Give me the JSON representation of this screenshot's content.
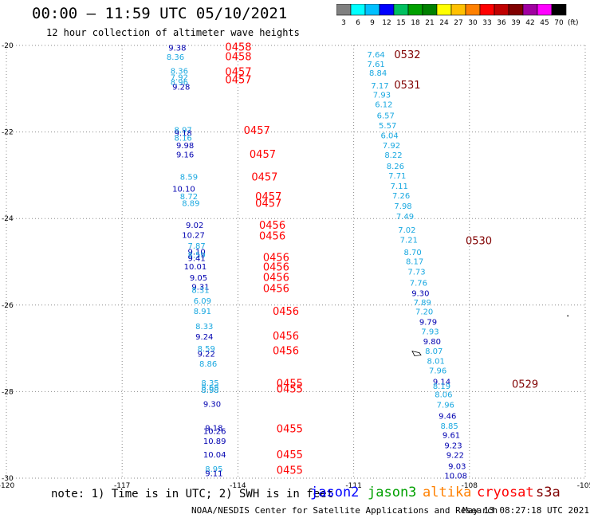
{
  "header": {
    "title": "00:00 – 11:59 UTC 05/10/2021",
    "subtitle": "12 hour collection of altimeter wave heights"
  },
  "colorbar": {
    "unit": "(ft)",
    "segments": [
      {
        "label": "3",
        "color": "#808080"
      },
      {
        "label": "6",
        "color": "#00ffff"
      },
      {
        "label": "9",
        "color": "#00c0ff"
      },
      {
        "label": "12",
        "color": "#0000ff"
      },
      {
        "label": "15",
        "color": "#00c060"
      },
      {
        "label": "18",
        "color": "#00a000"
      },
      {
        "label": "21",
        "color": "#008000"
      },
      {
        "label": "24",
        "color": "#ffff00"
      },
      {
        "label": "27",
        "color": "#ffc000"
      },
      {
        "label": "30",
        "color": "#ff8000"
      },
      {
        "label": "33",
        "color": "#ff0000"
      },
      {
        "label": "36",
        "color": "#c00000"
      },
      {
        "label": "39",
        "color": "#800000"
      },
      {
        "label": "42",
        "color": "#a000a0"
      },
      {
        "label": "45",
        "color": "#ff00ff"
      },
      {
        "label": "70",
        "color": "#000000"
      }
    ]
  },
  "chart_data": {
    "type": "scatter",
    "xlim": [
      -120,
      -105
    ],
    "ylim": [
      -30,
      -20
    ],
    "x_ticks": [
      "-120",
      "-117",
      "-114",
      "-111",
      "-108",
      "-105"
    ],
    "y_ticks": [
      "-20",
      "-22",
      "-24",
      "-26",
      "-28",
      "-30"
    ],
    "grid": true,
    "colors": {
      "light": "#19a8e0",
      "dark": "#0000b0",
      "red": "#ff0000",
      "darkred": "#800000"
    },
    "track_labels": [
      {
        "text": "0458",
        "lon": -114.33,
        "lat": -20.03,
        "color": "red"
      },
      {
        "text": "0458",
        "lon": -114.33,
        "lat": -20.25,
        "color": "red"
      },
      {
        "text": "0457",
        "lon": -114.33,
        "lat": -20.6,
        "color": "red"
      },
      {
        "text": "0457",
        "lon": -114.33,
        "lat": -20.78,
        "color": "red"
      },
      {
        "text": "0457",
        "lon": -113.85,
        "lat": -21.95,
        "color": "red"
      },
      {
        "text": "0457",
        "lon": -113.7,
        "lat": -22.5,
        "color": "red"
      },
      {
        "text": "0457",
        "lon": -113.65,
        "lat": -23.03,
        "color": "red"
      },
      {
        "text": "0457",
        "lon": -113.55,
        "lat": -23.48,
        "color": "red"
      },
      {
        "text": "0457",
        "lon": -113.55,
        "lat": -23.64,
        "color": "red"
      },
      {
        "text": "0456",
        "lon": -113.45,
        "lat": -24.14,
        "color": "red"
      },
      {
        "text": "0456",
        "lon": -113.45,
        "lat": -24.39,
        "color": "red"
      },
      {
        "text": "0456",
        "lon": -113.35,
        "lat": -24.89,
        "color": "red"
      },
      {
        "text": "0456",
        "lon": -113.35,
        "lat": -25.11,
        "color": "red"
      },
      {
        "text": "0456",
        "lon": -113.35,
        "lat": -25.35,
        "color": "red"
      },
      {
        "text": "0456",
        "lon": -113.35,
        "lat": -25.61,
        "color": "red"
      },
      {
        "text": "0456",
        "lon": -113.1,
        "lat": -26.13,
        "color": "red"
      },
      {
        "text": "0456",
        "lon": -113.1,
        "lat": -26.7,
        "color": "red"
      },
      {
        "text": "0456",
        "lon": -113.1,
        "lat": -27.04,
        "color": "red"
      },
      {
        "text": "0455",
        "lon": -113.0,
        "lat": -27.8,
        "color": "red"
      },
      {
        "text": "0455",
        "lon": -113.0,
        "lat": -27.93,
        "color": "red"
      },
      {
        "text": "0455",
        "lon": -113.0,
        "lat": -28.85,
        "color": "red"
      },
      {
        "text": "0455",
        "lon": -113.0,
        "lat": -29.45,
        "color": "red"
      },
      {
        "text": "0455",
        "lon": -113.0,
        "lat": -29.81,
        "color": "red"
      },
      {
        "text": "0532",
        "lon": -109.95,
        "lat": -20.2,
        "color": "darkred"
      },
      {
        "text": "0531",
        "lon": -109.95,
        "lat": -20.9,
        "color": "darkred"
      },
      {
        "text": "0530",
        "lon": -108.1,
        "lat": -24.5,
        "color": "darkred"
      },
      {
        "text": "0529",
        "lon": -106.9,
        "lat": -27.82,
        "color": "darkred"
      }
    ],
    "swh_points": [
      {
        "text": "9.38",
        "lon": -115.8,
        "lat": -20.05,
        "color": "dark"
      },
      {
        "text": "8.36",
        "lon": -115.85,
        "lat": -20.26,
        "color": "light"
      },
      {
        "text": "8.36",
        "lon": -115.75,
        "lat": -20.58,
        "color": "light"
      },
      {
        "text": "7.92",
        "lon": -115.75,
        "lat": -20.73,
        "color": "light"
      },
      {
        "text": "8.96",
        "lon": -115.75,
        "lat": -20.84,
        "color": "light"
      },
      {
        "text": "9.28",
        "lon": -115.7,
        "lat": -20.95,
        "color": "dark"
      },
      {
        "text": "8.97",
        "lon": -115.65,
        "lat": -21.94,
        "color": "light"
      },
      {
        "text": "9.18",
        "lon": -115.65,
        "lat": -22.02,
        "color": "dark"
      },
      {
        "text": "8.16",
        "lon": -115.65,
        "lat": -22.13,
        "color": "light"
      },
      {
        "text": "9.98",
        "lon": -115.6,
        "lat": -22.3,
        "color": "dark"
      },
      {
        "text": "9.16",
        "lon": -115.6,
        "lat": -22.51,
        "color": "dark"
      },
      {
        "text": "8.59",
        "lon": -115.5,
        "lat": -23.03,
        "color": "light"
      },
      {
        "text": "10.10",
        "lon": -115.7,
        "lat": -23.31,
        "color": "dark"
      },
      {
        "text": "8.72",
        "lon": -115.5,
        "lat": -23.48,
        "color": "light"
      },
      {
        "text": "8.89",
        "lon": -115.45,
        "lat": -23.64,
        "color": "light"
      },
      {
        "text": "9.02",
        "lon": -115.35,
        "lat": -24.14,
        "color": "dark"
      },
      {
        "text": "10.27",
        "lon": -115.45,
        "lat": -24.37,
        "color": "dark"
      },
      {
        "text": "7.87",
        "lon": -115.3,
        "lat": -24.62,
        "color": "light"
      },
      {
        "text": "9.10",
        "lon": -115.3,
        "lat": -24.76,
        "color": "dark"
      },
      {
        "text": "8.59",
        "lon": -115.3,
        "lat": -24.83,
        "color": "light"
      },
      {
        "text": "9.41",
        "lon": -115.3,
        "lat": -24.91,
        "color": "dark"
      },
      {
        "text": "10.01",
        "lon": -115.4,
        "lat": -25.1,
        "color": "dark"
      },
      {
        "text": "9.05",
        "lon": -115.25,
        "lat": -25.36,
        "color": "dark"
      },
      {
        "text": "9.31",
        "lon": -115.2,
        "lat": -25.57,
        "color": "dark"
      },
      {
        "text": "8.31",
        "lon": -115.2,
        "lat": -25.64,
        "color": "light"
      },
      {
        "text": "6.09",
        "lon": -115.15,
        "lat": -25.89,
        "color": "light"
      },
      {
        "text": "8.91",
        "lon": -115.15,
        "lat": -26.13,
        "color": "light"
      },
      {
        "text": "8.33",
        "lon": -115.1,
        "lat": -26.48,
        "color": "light"
      },
      {
        "text": "9.24",
        "lon": -115.1,
        "lat": -26.72,
        "color": "dark"
      },
      {
        "text": "8.59",
        "lon": -115.05,
        "lat": -27.0,
        "color": "light"
      },
      {
        "text": "9.22",
        "lon": -115.05,
        "lat": -27.12,
        "color": "dark"
      },
      {
        "text": "8.86",
        "lon": -115.0,
        "lat": -27.35,
        "color": "light"
      },
      {
        "text": "8.35",
        "lon": -114.95,
        "lat": -27.79,
        "color": "light"
      },
      {
        "text": "8.68",
        "lon": -114.95,
        "lat": -27.89,
        "color": "light"
      },
      {
        "text": "8.98",
        "lon": -114.95,
        "lat": -27.96,
        "color": "light"
      },
      {
        "text": "9.30",
        "lon": -114.9,
        "lat": -28.28,
        "color": "dark"
      },
      {
        "text": "9.18",
        "lon": -114.85,
        "lat": -28.83,
        "color": "dark"
      },
      {
        "text": "10.26",
        "lon": -114.9,
        "lat": -28.9,
        "color": "dark"
      },
      {
        "text": "10.89",
        "lon": -114.9,
        "lat": -29.13,
        "color": "dark"
      },
      {
        "text": "10.04",
        "lon": -114.9,
        "lat": -29.45,
        "color": "dark"
      },
      {
        "text": "8.95",
        "lon": -114.85,
        "lat": -29.78,
        "color": "light"
      },
      {
        "text": "9.11",
        "lon": -114.85,
        "lat": -29.88,
        "color": "dark"
      },
      {
        "text": "7.64",
        "lon": -110.65,
        "lat": -20.2,
        "color": "light"
      },
      {
        "text": "7.61",
        "lon": -110.65,
        "lat": -20.42,
        "color": "light"
      },
      {
        "text": "8.84",
        "lon": -110.6,
        "lat": -20.63,
        "color": "light"
      },
      {
        "text": "7.17",
        "lon": -110.55,
        "lat": -20.92,
        "color": "light"
      },
      {
        "text": "7.93",
        "lon": -110.5,
        "lat": -21.13,
        "color": "light"
      },
      {
        "text": "6.12",
        "lon": -110.45,
        "lat": -21.35,
        "color": "light"
      },
      {
        "text": "6.57",
        "lon": -110.4,
        "lat": -21.61,
        "color": "light"
      },
      {
        "text": "5.57",
        "lon": -110.35,
        "lat": -21.84,
        "color": "light"
      },
      {
        "text": "6.04",
        "lon": -110.3,
        "lat": -22.07,
        "color": "light"
      },
      {
        "text": "7.92",
        "lon": -110.25,
        "lat": -22.3,
        "color": "light"
      },
      {
        "text": "8.22",
        "lon": -110.2,
        "lat": -22.52,
        "color": "light"
      },
      {
        "text": "8.26",
        "lon": -110.15,
        "lat": -22.78,
        "color": "light"
      },
      {
        "text": "7.71",
        "lon": -110.1,
        "lat": -23.0,
        "color": "light"
      },
      {
        "text": "7.11",
        "lon": -110.05,
        "lat": -23.24,
        "color": "light"
      },
      {
        "text": "7.26",
        "lon": -110.0,
        "lat": -23.46,
        "color": "light"
      },
      {
        "text": "7.98",
        "lon": -109.95,
        "lat": -23.7,
        "color": "light"
      },
      {
        "text": "7.49",
        "lon": -109.9,
        "lat": -23.94,
        "color": "light"
      },
      {
        "text": "7.02",
        "lon": -109.85,
        "lat": -24.25,
        "color": "light"
      },
      {
        "text": "7.21",
        "lon": -109.8,
        "lat": -24.48,
        "color": "light"
      },
      {
        "text": "8.70",
        "lon": -109.7,
        "lat": -24.77,
        "color": "light"
      },
      {
        "text": "8.17",
        "lon": -109.65,
        "lat": -24.98,
        "color": "light"
      },
      {
        "text": "7.73",
        "lon": -109.6,
        "lat": -25.22,
        "color": "light"
      },
      {
        "text": "7.76",
        "lon": -109.55,
        "lat": -25.48,
        "color": "light"
      },
      {
        "text": "9.30",
        "lon": -109.5,
        "lat": -25.72,
        "color": "dark"
      },
      {
        "text": "7.89",
        "lon": -109.45,
        "lat": -25.93,
        "color": "light"
      },
      {
        "text": "7.20",
        "lon": -109.4,
        "lat": -26.14,
        "color": "light"
      },
      {
        "text": "9.79",
        "lon": -109.3,
        "lat": -26.38,
        "color": "dark"
      },
      {
        "text": "7.93",
        "lon": -109.25,
        "lat": -26.6,
        "color": "light"
      },
      {
        "text": "9.80",
        "lon": -109.2,
        "lat": -26.83,
        "color": "dark"
      },
      {
        "text": "8.07",
        "lon": -109.15,
        "lat": -27.05,
        "color": "light"
      },
      {
        "text": "8.01",
        "lon": -109.1,
        "lat": -27.28,
        "color": "light"
      },
      {
        "text": "7.96",
        "lon": -109.05,
        "lat": -27.5,
        "color": "light"
      },
      {
        "text": "9.14",
        "lon": -108.95,
        "lat": -27.76,
        "color": "dark"
      },
      {
        "text": "8.19",
        "lon": -108.95,
        "lat": -27.86,
        "color": "light"
      },
      {
        "text": "8.06",
        "lon": -108.9,
        "lat": -28.06,
        "color": "light"
      },
      {
        "text": "7.96",
        "lon": -108.85,
        "lat": -28.3,
        "color": "light"
      },
      {
        "text": "9.46",
        "lon": -108.8,
        "lat": -28.55,
        "color": "dark"
      },
      {
        "text": "8.85",
        "lon": -108.75,
        "lat": -28.78,
        "color": "light"
      },
      {
        "text": "9.61",
        "lon": -108.7,
        "lat": -29.0,
        "color": "dark"
      },
      {
        "text": "9.23",
        "lon": -108.65,
        "lat": -29.24,
        "color": "dark"
      },
      {
        "text": "9.22",
        "lon": -108.6,
        "lat": -29.46,
        "color": "dark"
      },
      {
        "text": "9.03",
        "lon": -108.55,
        "lat": -29.71,
        "color": "dark"
      },
      {
        "text": "10.08",
        "lon": -108.65,
        "lat": -29.94,
        "color": "dark"
      }
    ],
    "islands": [
      {
        "lon": -109.38,
        "lat": -27.12
      },
      {
        "lon": -105.45,
        "lat": -26.25
      }
    ]
  },
  "footer": {
    "note": "note: 1) Time is in UTC; 2) SWH is in feet",
    "missions": [
      {
        "label": "jason2",
        "color": "#0000ff"
      },
      {
        "label": "jason3",
        "color": "#00a000"
      },
      {
        "label": "altika",
        "color": "#ff8000"
      },
      {
        "label": "cryosat",
        "color": "#ff0000"
      },
      {
        "label": "s3a",
        "color": "#800000"
      }
    ],
    "credit": "NOAA/NESDIS Center for Satellite Applications and Research",
    "timestamp": "May 13 08:27:18 UTC 2021"
  }
}
